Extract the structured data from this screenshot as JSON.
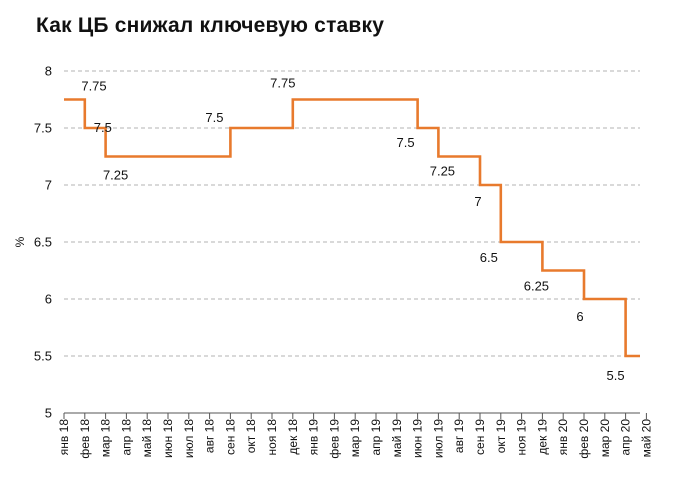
{
  "chart_data": {
    "type": "line",
    "step": true,
    "title": "Как ЦБ снижал ключевую ставку",
    "xlabel": "",
    "ylabel": "%",
    "ylim": [
      5,
      8
    ],
    "yticks": [
      5,
      5.5,
      6,
      6.5,
      7,
      7.5,
      8
    ],
    "ytick_labels": [
      "5",
      "5.5",
      "6",
      "6.5",
      "7",
      "7.5",
      "8"
    ],
    "grid": "horizontal dashed",
    "line_color": "#e87a2d",
    "categories": [
      "янв 18",
      "фев 18",
      "мар 18",
      "апр 18",
      "май 18",
      "июн 18",
      "июл 18",
      "авг 18",
      "сен 18",
      "окт 18",
      "ноя 18",
      "дек 18",
      "янв 19",
      "фев 19",
      "мар 19",
      "апр 19",
      "май 19",
      "июн 19",
      "июл 19",
      "авг 19",
      "сен 19",
      "окт 19",
      "ноя 19",
      "дек 19",
      "янв 20",
      "фев 20",
      "мар 20",
      "апр 20",
      "май 20"
    ],
    "series": [
      {
        "points": [
          {
            "x": "янв 18",
            "y": 7.75
          },
          {
            "x": "фев 18",
            "y": 7.5
          },
          {
            "x": "мар 18",
            "y": 7.25
          },
          {
            "x": "сен 18",
            "y": 7.5
          },
          {
            "x": "дек 18",
            "y": 7.75
          },
          {
            "x": "июн 19",
            "y": 7.5
          },
          {
            "x": "июл 19",
            "y": 7.25
          },
          {
            "x": "сен 19",
            "y": 7
          },
          {
            "x": "окт 19",
            "y": 6.5
          },
          {
            "x": "дек 19",
            "y": 6.25
          },
          {
            "x": "фев 20",
            "y": 6
          },
          {
            "x": "апр 20",
            "y": 5.5
          }
        ]
      }
    ],
    "data_labels": [
      "7.75",
      "7.5",
      "7.25",
      "7.5",
      "7.75",
      "7.5",
      "7.25",
      "7",
      "6.5",
      "6.25",
      "6",
      "5.5"
    ]
  }
}
